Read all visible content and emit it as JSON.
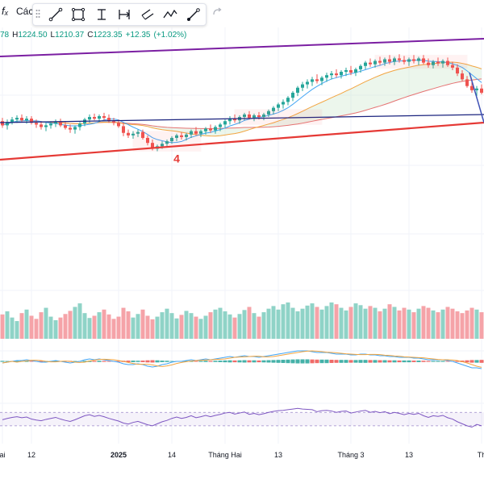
{
  "header": {
    "fx_symbol": "fₓ",
    "indicator_name": "Các",
    "tools": [
      {
        "name": "trend-line-tool"
      },
      {
        "name": "rectangle-tool"
      },
      {
        "name": "vertical-measure-tool"
      },
      {
        "name": "date-range-tool"
      },
      {
        "name": "channel-tool"
      },
      {
        "name": "path-tool"
      },
      {
        "name": "brush-tool"
      }
    ]
  },
  "ohlc": {
    "open_fragment": "78",
    "high_key": "H",
    "high": "1224.50",
    "low_key": "L",
    "low": "1210.37",
    "close_key": "C",
    "close": "1223.35",
    "change": "+12.35",
    "change_pct": "(+1.02%)"
  },
  "annotations": {
    "wave_label": "4"
  },
  "colors": {
    "up": "#26a69a",
    "down": "#ef5350",
    "vol_up": "#8fd3c7",
    "vol_down": "#f5a3a8",
    "ma_fast": "#42a5f5",
    "ma_mid": "#f2a541",
    "ma_slow": "#e57373",
    "trend_top": "#7b1fa2",
    "trend_bottom": "#e53935",
    "trend_mid": "#1a237e",
    "rsi": "#7e57c2",
    "ohlc_text": "#089981",
    "wave_label": "#e53935"
  },
  "chart_data": {
    "type": "candlestick",
    "x_labels": [
      {
        "text": "ai",
        "i": 0
      },
      {
        "text": "12",
        "i": 6
      },
      {
        "text": "2025",
        "i": 24
      },
      {
        "text": "14",
        "i": 35
      },
      {
        "text": "Tháng Hai",
        "i": 46
      },
      {
        "text": "13",
        "i": 57
      },
      {
        "text": "Tháng 3",
        "i": 72
      },
      {
        "text": "13",
        "i": 84
      },
      {
        "text": "Th",
        "i": 99
      }
    ],
    "candles": [
      [
        1248,
        1252,
        1240,
        1243
      ],
      [
        1243,
        1250,
        1238,
        1247
      ],
      [
        1247,
        1253,
        1244,
        1250
      ],
      [
        1250,
        1255,
        1246,
        1252
      ],
      [
        1252,
        1256,
        1247,
        1249
      ],
      [
        1249,
        1254,
        1245,
        1251
      ],
      [
        1251,
        1254,
        1244,
        1246
      ],
      [
        1246,
        1250,
        1240,
        1244
      ],
      [
        1244,
        1248,
        1238,
        1241
      ],
      [
        1241,
        1246,
        1236,
        1243
      ],
      [
        1243,
        1248,
        1239,
        1245
      ],
      [
        1245,
        1250,
        1241,
        1247
      ],
      [
        1247,
        1251,
        1241,
        1243
      ],
      [
        1243,
        1247,
        1238,
        1240
      ],
      [
        1240,
        1244,
        1234,
        1238
      ],
      [
        1238,
        1243,
        1233,
        1241
      ],
      [
        1241,
        1247,
        1237,
        1245
      ],
      [
        1245,
        1252,
        1242,
        1250
      ],
      [
        1250,
        1256,
        1246,
        1253
      ],
      [
        1253,
        1257,
        1249,
        1251
      ],
      [
        1251,
        1256,
        1247,
        1254
      ],
      [
        1254,
        1258,
        1249,
        1252
      ],
      [
        1252,
        1256,
        1246,
        1248
      ],
      [
        1248,
        1252,
        1243,
        1246
      ],
      [
        1246,
        1250,
        1240,
        1242
      ],
      [
        1242,
        1246,
        1230,
        1234
      ],
      [
        1234,
        1238,
        1228,
        1231
      ],
      [
        1231,
        1236,
        1227,
        1233
      ],
      [
        1233,
        1238,
        1229,
        1235
      ],
      [
        1235,
        1238,
        1226,
        1228
      ],
      [
        1228,
        1231,
        1219,
        1222
      ],
      [
        1222,
        1226,
        1213,
        1215
      ],
      [
        1215,
        1220,
        1212,
        1218
      ],
      [
        1218,
        1224,
        1215,
        1221
      ],
      [
        1221,
        1226,
        1218,
        1224
      ],
      [
        1224,
        1230,
        1221,
        1228
      ],
      [
        1228,
        1233,
        1224,
        1231
      ],
      [
        1231,
        1235,
        1226,
        1229
      ],
      [
        1229,
        1234,
        1225,
        1232
      ],
      [
        1232,
        1238,
        1228,
        1236
      ],
      [
        1236,
        1241,
        1231,
        1233
      ],
      [
        1233,
        1238,
        1229,
        1236
      ],
      [
        1236,
        1241,
        1232,
        1239
      ],
      [
        1239,
        1244,
        1234,
        1237
      ],
      [
        1237,
        1243,
        1233,
        1241
      ],
      [
        1241,
        1246,
        1236,
        1244
      ],
      [
        1244,
        1250,
        1240,
        1248
      ],
      [
        1248,
        1254,
        1244,
        1251
      ],
      [
        1251,
        1256,
        1246,
        1249
      ],
      [
        1249,
        1255,
        1245,
        1253
      ],
      [
        1253,
        1258,
        1249,
        1256
      ],
      [
        1256,
        1260,
        1250,
        1252
      ],
      [
        1252,
        1257,
        1248,
        1255
      ],
      [
        1255,
        1259,
        1250,
        1253
      ],
      [
        1253,
        1258,
        1249,
        1256
      ],
      [
        1256,
        1262,
        1253,
        1260
      ],
      [
        1260,
        1266,
        1256,
        1264
      ],
      [
        1264,
        1270,
        1260,
        1268
      ],
      [
        1268,
        1274,
        1263,
        1271
      ],
      [
        1271,
        1278,
        1267,
        1276
      ],
      [
        1276,
        1284,
        1272,
        1282
      ],
      [
        1282,
        1290,
        1278,
        1288
      ],
      [
        1288,
        1295,
        1284,
        1292
      ],
      [
        1292,
        1298,
        1287,
        1295
      ],
      [
        1295,
        1301,
        1290,
        1298
      ],
      [
        1298,
        1304,
        1293,
        1296
      ],
      [
        1296,
        1302,
        1291,
        1300
      ],
      [
        1300,
        1306,
        1295,
        1303
      ],
      [
        1303,
        1308,
        1298,
        1305
      ],
      [
        1305,
        1310,
        1300,
        1303
      ],
      [
        1303,
        1309,
        1299,
        1307
      ],
      [
        1307,
        1312,
        1302,
        1309
      ],
      [
        1309,
        1314,
        1303,
        1306
      ],
      [
        1306,
        1312,
        1302,
        1310
      ],
      [
        1310,
        1316,
        1306,
        1314
      ],
      [
        1314,
        1320,
        1310,
        1318
      ],
      [
        1318,
        1323,
        1313,
        1316
      ],
      [
        1316,
        1322,
        1312,
        1320
      ],
      [
        1320,
        1325,
        1315,
        1318
      ],
      [
        1318,
        1324,
        1314,
        1322
      ],
      [
        1322,
        1327,
        1316,
        1319
      ],
      [
        1319,
        1325,
        1315,
        1323
      ],
      [
        1323,
        1328,
        1318,
        1321
      ],
      [
        1321,
        1326,
        1316,
        1319
      ],
      [
        1319,
        1324,
        1314,
        1322
      ],
      [
        1322,
        1327,
        1317,
        1320
      ],
      [
        1320,
        1325,
        1315,
        1323
      ],
      [
        1323,
        1327,
        1316,
        1318
      ],
      [
        1318,
        1323,
        1312,
        1315
      ],
      [
        1315,
        1321,
        1311,
        1319
      ],
      [
        1319,
        1324,
        1314,
        1317
      ],
      [
        1317,
        1322,
        1312,
        1320
      ],
      [
        1320,
        1324,
        1313,
        1315
      ],
      [
        1315,
        1319,
        1309,
        1312
      ],
      [
        1312,
        1316,
        1302,
        1305
      ],
      [
        1305,
        1309,
        1296,
        1298
      ],
      [
        1298,
        1302,
        1288,
        1290
      ],
      [
        1290,
        1295,
        1282,
        1285
      ],
      [
        1285,
        1290,
        1278,
        1287
      ],
      [
        1287,
        1292,
        1280,
        1282
      ]
    ],
    "volume": [
      55,
      62,
      48,
      40,
      58,
      66,
      52,
      45,
      60,
      70,
      50,
      42,
      48,
      56,
      63,
      72,
      80,
      58,
      47,
      52,
      60,
      66,
      55,
      45,
      50,
      70,
      62,
      48,
      56,
      66,
      52,
      44,
      50,
      60,
      68,
      58,
      46,
      54,
      63,
      58,
      50,
      45,
      52,
      60,
      66,
      70,
      62,
      55,
      48,
      56,
      65,
      72,
      58,
      50,
      60,
      68,
      74,
      66,
      78,
      82,
      70,
      62,
      68,
      75,
      80,
      72,
      66,
      74,
      82,
      78,
      70,
      64,
      72,
      80,
      76,
      68,
      74,
      70,
      62,
      68,
      78,
      72,
      64,
      70,
      66,
      60,
      68,
      74,
      70,
      64,
      60,
      66,
      72,
      68,
      62,
      58,
      64,
      70,
      66,
      60
    ],
    "rsi": [
      48,
      52,
      55,
      57,
      54,
      56,
      50,
      47,
      45,
      49,
      52,
      55,
      50,
      46,
      43,
      48,
      54,
      60,
      63,
      58,
      61,
      57,
      52,
      48,
      44,
      38,
      35,
      40,
      43,
      38,
      33,
      30,
      36,
      42,
      46,
      52,
      56,
      52,
      55,
      60,
      54,
      57,
      61,
      57,
      61,
      64,
      68,
      70,
      65,
      68,
      71,
      64,
      67,
      63,
      66,
      70,
      73,
      75,
      76,
      78,
      80,
      82,
      80,
      79,
      78,
      72,
      75,
      76,
      74,
      70,
      73,
      74,
      68,
      71,
      74,
      76,
      70,
      73,
      69,
      72,
      66,
      70,
      67,
      63,
      67,
      64,
      67,
      60,
      55,
      60,
      58,
      61,
      54,
      50,
      42,
      36,
      30,
      26,
      34,
      30
    ],
    "price_range": [
      1200,
      1335
    ],
    "rsi_range": [
      20,
      85
    ],
    "macd": [
      -2,
      -1,
      0,
      1,
      1,
      2,
      1,
      0,
      -1,
      -1,
      0,
      1,
      0,
      -1,
      -2,
      -1,
      0,
      2,
      3,
      2,
      3,
      2,
      1,
      0,
      -1,
      -3,
      -4,
      -4,
      -3,
      -4,
      -6,
      -7,
      -6,
      -4,
      -3,
      -1,
      0,
      0,
      1,
      2,
      1,
      2,
      3,
      2,
      3,
      4,
      5,
      6,
      5,
      6,
      7,
      6,
      6,
      5,
      6,
      7,
      8,
      9,
      10,
      11,
      12,
      13,
      13,
      13,
      12,
      11,
      11,
      11,
      10,
      9,
      9,
      9,
      8,
      8,
      9,
      9,
      8,
      8,
      7,
      7,
      6,
      6,
      5,
      5,
      5,
      4,
      4,
      3,
      2,
      2,
      2,
      2,
      1,
      0,
      -2,
      -4,
      -6,
      -8,
      -8,
      -9
    ],
    "grid": true
  }
}
